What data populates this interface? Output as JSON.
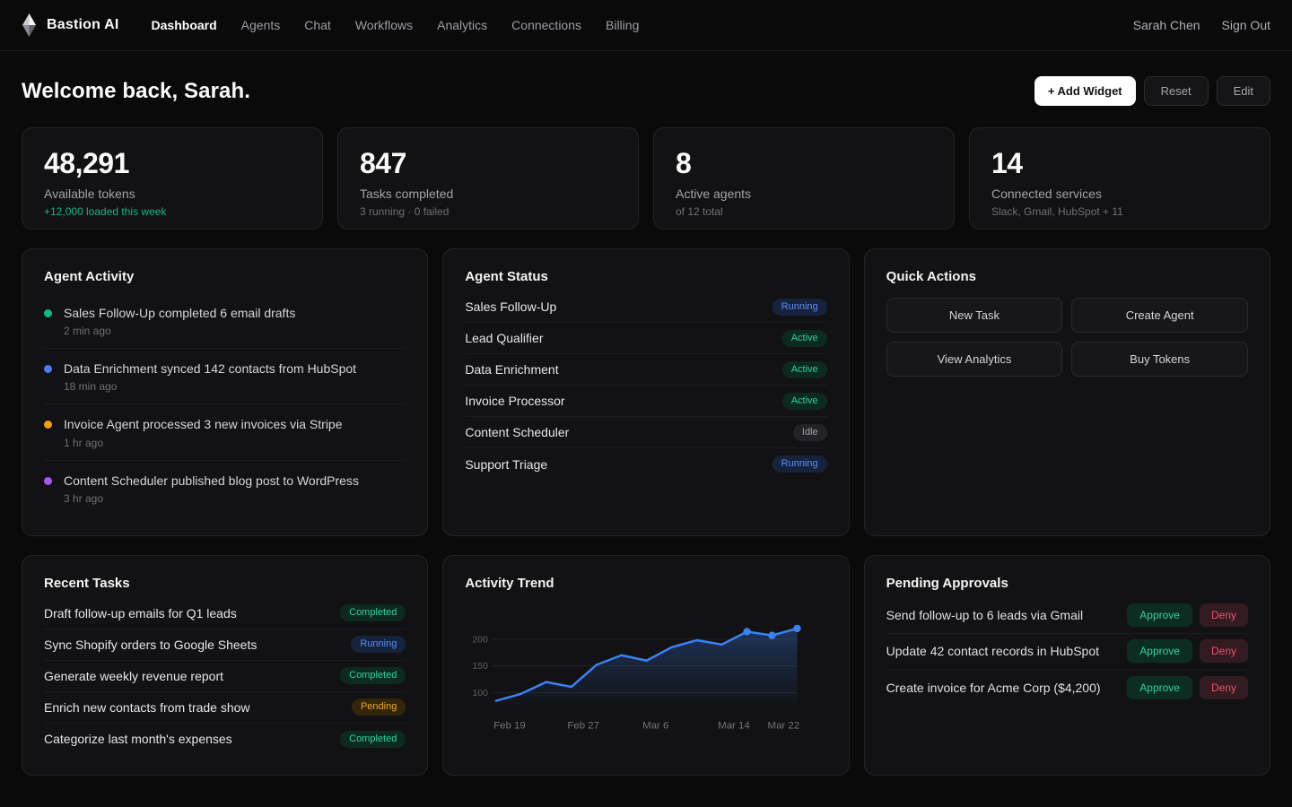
{
  "colors": {
    "accent_blue": "#3b82f6",
    "green": "#10b981",
    "amber": "#f59e0b",
    "purple": "#a855f7",
    "red": "#f0516b"
  },
  "nav": {
    "brand": "Bastion AI",
    "links": [
      {
        "label": "Dashboard",
        "active": true
      },
      {
        "label": "Agents",
        "active": false
      },
      {
        "label": "Chat",
        "active": false
      },
      {
        "label": "Workflows",
        "active": false
      },
      {
        "label": "Analytics",
        "active": false
      },
      {
        "label": "Connections",
        "active": false
      },
      {
        "label": "Billing",
        "active": false
      }
    ],
    "user": "Sarah Chen",
    "sign_out": "Sign Out"
  },
  "header": {
    "title": "Welcome back, Sarah.",
    "add_widget": "+ Add Widget",
    "reset": "Reset",
    "edit": "Edit"
  },
  "stats": [
    {
      "value": "48,291",
      "label": "Available tokens",
      "sub": "+12,000 loaded this week",
      "sub_positive": true
    },
    {
      "value": "847",
      "label": "Tasks completed",
      "sub": "3 running · 0 failed",
      "sub_positive": false
    },
    {
      "value": "8",
      "label": "Active agents",
      "sub": "of 12 total",
      "sub_positive": false
    },
    {
      "value": "14",
      "label": "Connected services",
      "sub": "Slack, Gmail, HubSpot + 11",
      "sub_positive": false
    }
  ],
  "agent_activity": {
    "title": "Agent Activity",
    "items": [
      {
        "color": "green",
        "text": "Sales Follow-Up completed 6 email drafts",
        "time": "2 min ago"
      },
      {
        "color": "blue",
        "text": "Data Enrichment synced 142 contacts from HubSpot",
        "time": "18 min ago"
      },
      {
        "color": "amber",
        "text": "Invoice Agent processed 3 new invoices via Stripe",
        "time": "1 hr ago"
      },
      {
        "color": "purple",
        "text": "Content Scheduler published blog post to WordPress",
        "time": "3 hr ago"
      }
    ]
  },
  "agent_status": {
    "title": "Agent Status",
    "items": [
      {
        "name": "Sales Follow-Up",
        "status": "Running"
      },
      {
        "name": "Lead Qualifier",
        "status": "Active"
      },
      {
        "name": "Data Enrichment",
        "status": "Active"
      },
      {
        "name": "Invoice Processor",
        "status": "Active"
      },
      {
        "name": "Content Scheduler",
        "status": "Idle"
      },
      {
        "name": "Support Triage",
        "status": "Running"
      }
    ]
  },
  "quick_actions": {
    "title": "Quick Actions",
    "buttons": [
      "New Task",
      "Create Agent",
      "View Analytics",
      "Buy Tokens"
    ]
  },
  "recent_tasks": {
    "title": "Recent Tasks",
    "items": [
      {
        "name": "Draft follow-up emails for Q1 leads",
        "status": "Completed"
      },
      {
        "name": "Sync Shopify orders to Google Sheets",
        "status": "Running"
      },
      {
        "name": "Generate weekly revenue report",
        "status": "Completed"
      },
      {
        "name": "Enrich new contacts from trade show",
        "status": "Pending"
      },
      {
        "name": "Categorize last month's expenses",
        "status": "Completed"
      }
    ]
  },
  "chart_data": {
    "type": "area",
    "title": "Activity Trend",
    "x_tick_labels": [
      "Feb 19",
      "Feb 27",
      "Mar 6",
      "Mar 14",
      "Mar 22"
    ],
    "values": [
      85,
      98,
      120,
      111,
      152,
      170,
      160,
      185,
      198,
      190,
      214,
      207,
      220
    ],
    "y_ticks": [
      100,
      150,
      200
    ],
    "ylim": [
      80,
      235
    ],
    "line_color": "#3b82f6",
    "marker_indices": [
      10,
      11,
      12
    ],
    "grid": true,
    "legend_position": "none"
  },
  "pending_approvals": {
    "title": "Pending Approvals",
    "approve_label": "Approve",
    "deny_label": "Deny",
    "items": [
      {
        "text": "Send follow-up to 6 leads via Gmail"
      },
      {
        "text": "Update 42 contact records in HubSpot"
      },
      {
        "text": "Create invoice for Acme Corp ($4,200)"
      }
    ]
  }
}
